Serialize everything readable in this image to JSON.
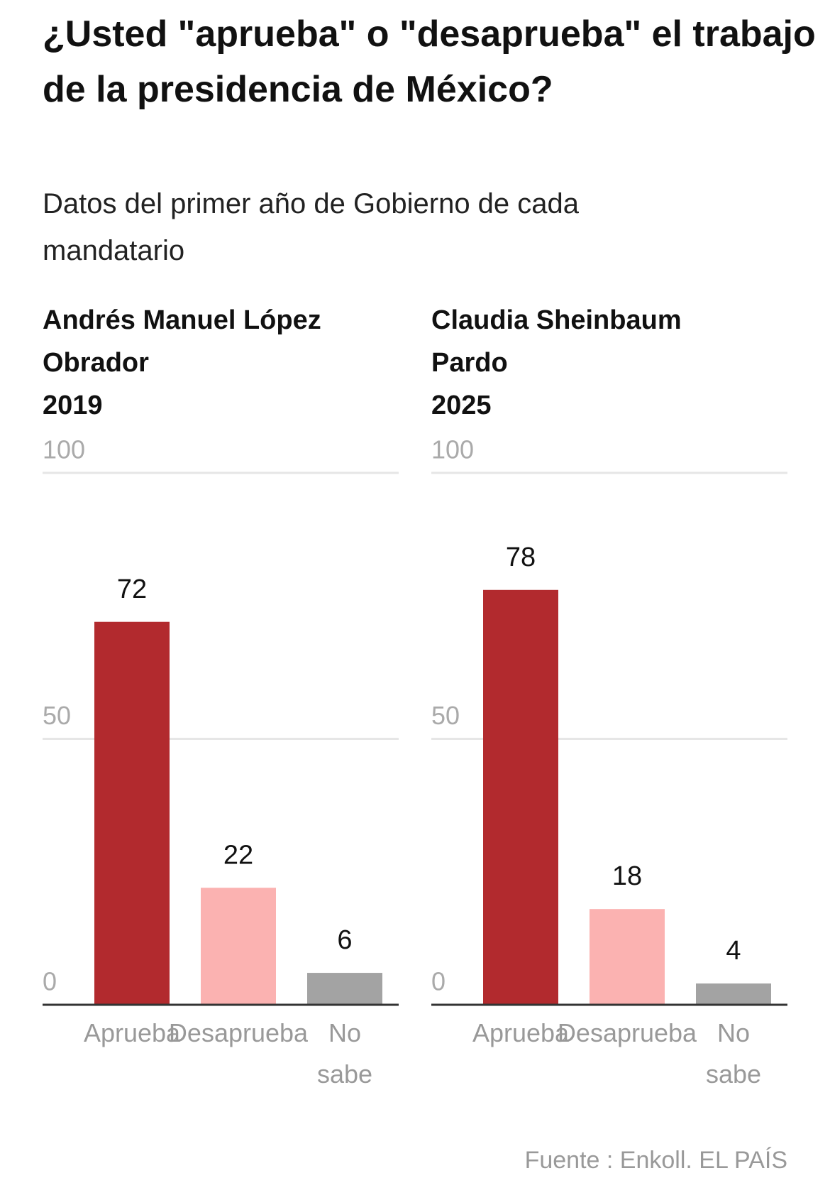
{
  "header": {
    "title": "¿Usted \"aprueba\" o \"desaprueba\" el trabajo de la presidencia de México?",
    "subtitle": "Datos del primer año de Gobierno de cada mandatario"
  },
  "source": "Fuente : Enkoll. EL PAÍS",
  "chart_data": [
    {
      "type": "bar",
      "title": "Andrés Manuel López Obrador",
      "subtitle": "2019",
      "categories": [
        "Aprueba",
        "Desaprueba",
        "No sabe"
      ],
      "values": [
        72,
        22,
        6
      ],
      "colors": [
        "#b22a2e",
        "#fbb2b1",
        "#a3a3a3"
      ],
      "ylim": [
        0,
        100
      ],
      "yticks": [
        0,
        50,
        100
      ],
      "grid": true
    },
    {
      "type": "bar",
      "title": "Claudia Sheinbaum Pardo",
      "subtitle": "2025",
      "categories": [
        "Aprueba",
        "Desaprueba",
        "No sabe"
      ],
      "values": [
        78,
        18,
        4
      ],
      "colors": [
        "#b22a2e",
        "#fbb2b1",
        "#a3a3a3"
      ],
      "ylim": [
        0,
        100
      ],
      "yticks": [
        0,
        50,
        100
      ],
      "grid": true
    }
  ]
}
